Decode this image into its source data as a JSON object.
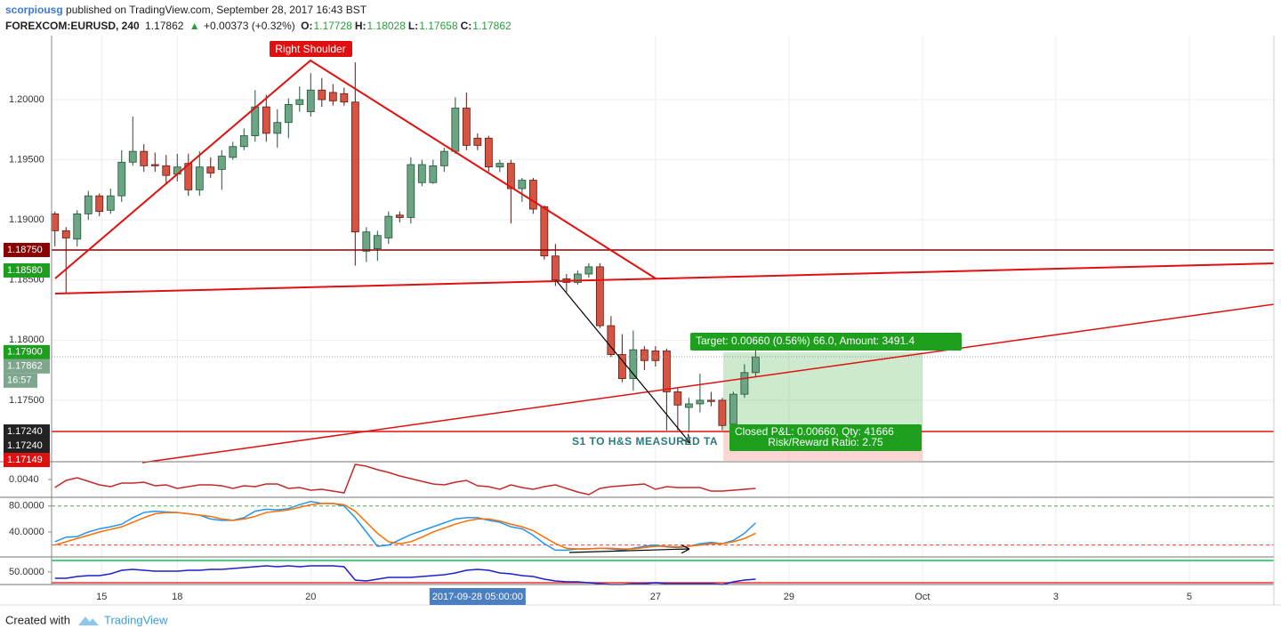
{
  "header": {
    "author": "scorpiousg",
    "published": "published on TradingView.com, September 28, 2017 16:43 BST",
    "symbol": "FOREXCOM:EURUSD, 240",
    "last": 1.17862,
    "arrow": "▲",
    "change": "+0.00373 (+0.32%)",
    "ohlc": [
      {
        "label": "O:",
        "value": 1.17728
      },
      {
        "label": "H:",
        "value": 1.18028
      },
      {
        "label": "L:",
        "value": 1.17658
      },
      {
        "label": "C:",
        "value": 1.17862
      }
    ]
  },
  "chart_data": [
    {
      "type": "candlestick",
      "up_color": "#6ba583",
      "down_color": "#d75442",
      "xlim": [
        -0.3,
        109.6
      ],
      "xticks": [
        {
          "value": 4.2,
          "label": "15"
        },
        {
          "value": 11,
          "label": "18"
        },
        {
          "value": 23,
          "label": "20"
        },
        {
          "value": 54,
          "label": "27"
        },
        {
          "value": 66,
          "label": "29"
        },
        {
          "value": 78,
          "label": "Oct"
        },
        {
          "value": 90,
          "label": "3"
        },
        {
          "value": 102,
          "label": "5"
        }
      ],
      "crosshair": {
        "value": 38,
        "label": "2017-09-28 05:00:00"
      },
      "ylim": [
        1.16996,
        1.20533
      ],
      "yticks": [
        {
          "value": 1.2,
          "label": "1.20000"
        },
        {
          "value": 1.195,
          "label": "1.19500"
        },
        {
          "value": 1.19,
          "label": "1.19000"
        },
        {
          "value": 1.185,
          "label": "1.18500"
        },
        {
          "value": 1.18,
          "label": "1.18000"
        },
        {
          "value": 1.175,
          "label": "1.17500"
        }
      ],
      "grid": true,
      "open": [
        1.1905,
        1.1891,
        1.1884,
        1.1905,
        1.192,
        1.1908,
        1.192,
        1.1948,
        1.1957,
        1.1946,
        1.1945,
        1.1938,
        1.1947,
        1.1925,
        1.1944,
        1.1942,
        1.1952,
        1.1961,
        1.197,
        1.1994,
        1.1972,
        1.1981,
        1.1996,
        1.199,
        1.2008,
        1.2006,
        1.2005,
        1.1998,
        1.1874,
        1.1876,
        1.1885,
        1.1904,
        1.1902,
        1.1931,
        1.1931,
        1.1945,
        1.1957,
        1.1993,
        1.1968,
        1.1968,
        1.1944,
        1.1947,
        1.1926,
        1.1933,
        1.1911,
        1.187,
        1.1851,
        1.1848,
        1.1855,
        1.1861,
        1.1812,
        1.1788,
        1.1768,
        1.1792,
        1.1791,
        1.1791,
        1.1757,
        1.1744,
        1.1747,
        1.175,
        1.175,
        1.173,
        1.1755,
        1.1773
      ],
      "high": [
        1.1907,
        1.1894,
        1.1908,
        1.1924,
        1.1922,
        1.1926,
        1.1958,
        1.1986,
        1.1963,
        1.1956,
        1.1954,
        1.1955,
        1.1955,
        1.1957,
        1.1952,
        1.1958,
        1.1965,
        1.1976,
        1.2008,
        1.2004,
        1.1992,
        1.2001,
        1.2011,
        1.2022,
        1.2018,
        1.2013,
        1.201,
        1.2031,
        1.1894,
        1.1891,
        1.1907,
        1.1907,
        1.1952,
        1.195,
        1.195,
        1.196,
        1.2002,
        1.2006,
        1.1972,
        1.197,
        1.195,
        1.195,
        1.1935,
        1.1935,
        1.1912,
        1.188,
        1.1855,
        1.1858,
        1.1864,
        1.1864,
        1.182,
        1.1805,
        1.1808,
        1.1795,
        1.1795,
        1.1793,
        1.176,
        1.1752,
        1.1772,
        1.1757,
        1.1752,
        1.1757,
        1.178,
        1.1792
      ],
      "low": [
        1.1878,
        1.1839,
        1.1878,
        1.19,
        1.1903,
        1.1905,
        1.1915,
        1.1945,
        1.194,
        1.194,
        1.193,
        1.1932,
        1.192,
        1.192,
        1.1935,
        1.1925,
        1.195,
        1.1958,
        1.1965,
        1.1965,
        1.196,
        1.1968,
        1.199,
        1.1986,
        1.1994,
        1.1995,
        1.1995,
        1.1862,
        1.1865,
        1.1866,
        1.188,
        1.1898,
        1.1897,
        1.1928,
        1.193,
        1.194,
        1.1955,
        1.1958,
        1.1958,
        1.194,
        1.194,
        1.1897,
        1.1915,
        1.1905,
        1.1867,
        1.1845,
        1.184,
        1.1846,
        1.1852,
        1.181,
        1.1786,
        1.1765,
        1.1758,
        1.1775,
        1.1778,
        1.1725,
        1.1725,
        1.1723,
        1.174,
        1.1745,
        1.1725,
        1.1727,
        1.1752,
        1.177
      ],
      "close": [
        1.1891,
        1.1885,
        1.1905,
        1.192,
        1.1907,
        1.192,
        1.1948,
        1.1957,
        1.1945,
        1.1945,
        1.1937,
        1.1944,
        1.1925,
        1.1944,
        1.1939,
        1.1953,
        1.1961,
        1.197,
        1.1994,
        1.1972,
        1.1981,
        1.1996,
        1.2,
        1.2008,
        1.2,
        1.1999,
        1.1998,
        1.189,
        1.189,
        1.1887,
        1.1903,
        1.1902,
        1.1946,
        1.1946,
        1.1945,
        1.1957,
        1.1993,
        1.1962,
        1.1962,
        1.1944,
        1.1947,
        1.1926,
        1.1933,
        1.1909,
        1.187,
        1.185,
        1.1848,
        1.1855,
        1.1861,
        1.1812,
        1.1788,
        1.1768,
        1.1792,
        1.1783,
        1.1783,
        1.1757,
        1.1746,
        1.1747,
        1.175,
        1.1749,
        1.1729,
        1.1755,
        1.1773,
        1.1786
      ],
      "price_labels": [
        {
          "value": 1.1875,
          "label": "1.18750",
          "color": "#8b0000",
          "line": "solid"
        },
        {
          "value": 1.1858,
          "label": "1.18580",
          "color": "#1e9e1e"
        },
        {
          "value": 1.179,
          "label": "1.17900",
          "color": "#1e9e1e"
        },
        {
          "value": 1.17862,
          "label": "1.17862",
          "color": "#7fa68f",
          "line": "dotted"
        },
        {
          "value": 1.1724,
          "label": "1.17240",
          "color": "#222222",
          "line": "solid"
        },
        {
          "value": 1.1724,
          "label": "1.17240",
          "color": "#222222"
        },
        {
          "value": 1.17149,
          "label": "1.17149",
          "color": "#e01010"
        }
      ],
      "countdown": "16:57"
    },
    {
      "type": "line",
      "ylim": [
        0.0021,
        0.0059
      ],
      "yticks": [
        {
          "value": 0.004,
          "label": "0.0040"
        }
      ],
      "series": [
        {
          "color": "#c62828",
          "values": [
            0.0031,
            0.0039,
            0.0042,
            0.0038,
            0.0034,
            0.0032,
            0.0036,
            0.0036,
            0.0037,
            0.0033,
            0.0034,
            0.003,
            0.0032,
            0.0034,
            0.0034,
            0.0033,
            0.003,
            0.0033,
            0.0032,
            0.0035,
            0.0035,
            0.003,
            0.0031,
            0.0028,
            0.0029,
            0.0027,
            0.0025,
            0.0057,
            0.0055,
            0.0051,
            0.0048,
            0.0044,
            0.0041,
            0.0038,
            0.0035,
            0.0034,
            0.0037,
            0.0039,
            0.0033,
            0.0032,
            0.0029,
            0.0034,
            0.0031,
            0.0029,
            0.0032,
            0.0034,
            0.003,
            0.0026,
            0.0023,
            0.003,
            0.0032,
            0.0033,
            0.0034,
            0.0035,
            0.0029,
            0.0032,
            0.0031,
            0.0031,
            0.0031,
            0.0027,
            0.0027,
            0.0028,
            0.0029,
            0.003
          ]
        }
      ]
    },
    {
      "type": "line",
      "ylim": [
        3,
        92
      ],
      "yticks": [
        {
          "value": 80,
          "label": "80.0000"
        },
        {
          "value": 40,
          "label": "40.0000"
        }
      ],
      "levels": [
        {
          "value": 80,
          "color": "#4caf50",
          "dash": true
        },
        {
          "value": 20,
          "color": "#f44336",
          "dash": true
        }
      ],
      "series": [
        {
          "color": "#2196f3",
          "values": [
            25,
            32,
            33,
            40,
            45,
            48,
            52,
            62,
            70,
            72,
            71,
            70,
            68,
            66,
            60,
            58,
            58,
            62,
            72,
            75,
            74,
            76,
            82,
            87,
            84,
            84,
            80,
            62,
            40,
            18,
            20,
            28,
            36,
            42,
            48,
            54,
            60,
            62,
            62,
            58,
            55,
            48,
            45,
            35,
            22,
            12,
            12,
            14,
            14,
            15,
            14,
            12,
            15,
            18,
            20,
            17,
            16,
            18,
            22,
            24,
            22,
            27,
            38,
            54
          ]
        },
        {
          "color": "#ff6d00",
          "values": [
            20,
            25,
            30,
            35,
            40,
            44,
            48,
            55,
            62,
            68,
            70,
            70,
            68,
            66,
            64,
            60,
            58,
            60,
            64,
            70,
            72,
            74,
            78,
            82,
            84,
            84,
            82,
            72,
            55,
            38,
            25,
            22,
            25,
            32,
            40,
            46,
            52,
            57,
            60,
            60,
            57,
            52,
            48,
            42,
            32,
            22,
            15,
            14,
            14,
            15,
            15,
            14,
            14,
            16,
            18,
            18,
            17,
            18,
            20,
            22,
            22,
            25,
            30,
            38
          ]
        }
      ]
    },
    {
      "type": "line",
      "ylim": [
        36,
        66
      ],
      "yticks": [
        {
          "value": 50,
          "label": "50.0000"
        }
      ],
      "levels": [
        {
          "value": 63,
          "color": "#00c853"
        },
        {
          "value": 38,
          "color": "#e53935"
        }
      ],
      "series": [
        {
          "color": "#1e1ed2",
          "values": [
            43,
            43,
            45,
            46,
            46,
            48,
            52,
            53,
            52,
            51,
            51,
            51,
            52,
            52,
            53,
            53,
            54,
            55,
            56,
            57,
            56,
            57,
            56,
            57,
            57,
            57,
            56,
            41,
            40,
            42,
            44,
            44,
            44,
            45,
            46,
            47,
            49,
            52,
            53,
            52,
            49,
            48,
            46,
            45,
            42,
            40,
            39,
            39,
            38,
            37,
            36,
            36,
            37,
            37,
            38,
            37,
            37,
            37,
            37,
            37,
            36,
            39,
            41,
            42
          ]
        }
      ]
    }
  ],
  "annotations": {
    "shoulder": "Right Shoulder",
    "measured": "S1 TO H&S MEASURED TA",
    "target": "Target: 0.00660 (0.56%) 66.0, Amount: 3491.4",
    "pnl": "Closed P&L: 0.00660, Qty: 41666",
    "rr": "Risk/Reward Ratio: 2.75"
  },
  "footer": {
    "created": "Created with",
    "brand": "TradingView"
  }
}
